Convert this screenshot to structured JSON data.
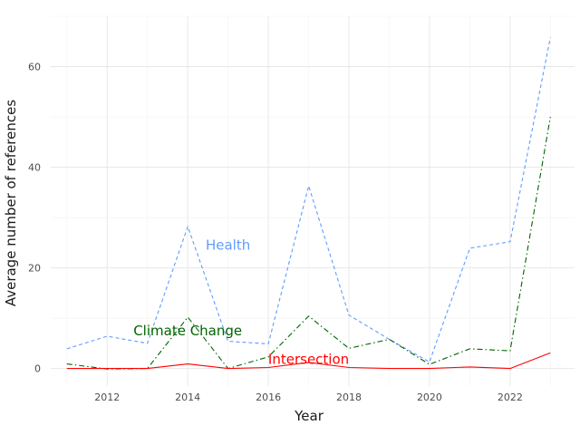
{
  "chart_data": {
    "type": "line",
    "title": "",
    "xlabel": "Year",
    "ylabel": "Average number of references",
    "x": [
      2011,
      2012,
      2013,
      2014,
      2015,
      2016,
      2017,
      2018,
      2019,
      2020,
      2021,
      2022,
      2023
    ],
    "xticks": [
      2012,
      2014,
      2016,
      2018,
      2020,
      2022
    ],
    "yticks": [
      0,
      20,
      40,
      60
    ],
    "xlim": [
      2010.6,
      2023.6
    ],
    "ylim": [
      -3.5,
      70
    ],
    "grid": true,
    "legend": "none (direct labels)",
    "series": [
      {
        "name": "Health",
        "color": "#619CFF",
        "dash": "dashed",
        "values": [
          3.9,
          6.4,
          5.0,
          28.2,
          5.4,
          4.9,
          36.3,
          10.6,
          5.8,
          1.3,
          23.9,
          25.2,
          65.8
        ],
        "label_x": 2015.0,
        "label_y": 24.5
      },
      {
        "name": "Climate Change",
        "color": "#006400",
        "dash": "dashdot",
        "values": [
          0.9,
          -0.1,
          0.0,
          10.2,
          0.0,
          2.3,
          10.4,
          4.0,
          5.8,
          0.8,
          3.9,
          3.5,
          50.0
        ],
        "label_x": 2014.0,
        "label_y": 7.5
      },
      {
        "name": "Intersection",
        "color": "#FF0000",
        "dash": "solid",
        "values": [
          0.0,
          0.0,
          0.0,
          0.9,
          0.0,
          0.2,
          1.2,
          0.2,
          0.0,
          0.0,
          0.3,
          0.0,
          3.1
        ],
        "label_x": 2017.0,
        "label_y": 1.8
      }
    ]
  }
}
